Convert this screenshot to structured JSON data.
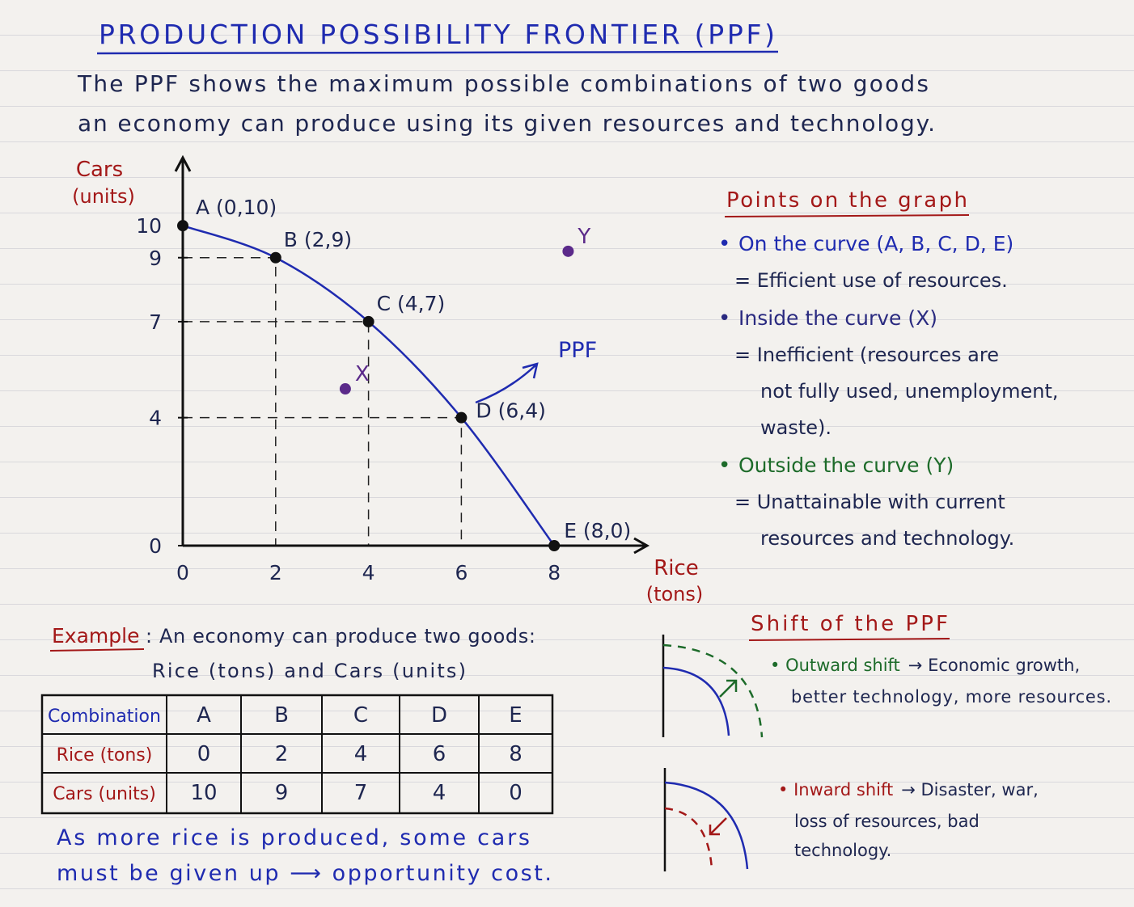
{
  "header": {
    "title": "PRODUCTION POSSIBILITY FRONTIER (PPF)",
    "intro": [
      "The PPF shows the maximum possible combinations of two goods",
      "an economy can produce using its given resources and technology."
    ]
  },
  "chart_data": {
    "type": "line",
    "y_label": "Cars",
    "y_unit": "(units)",
    "x_label": "Rice",
    "x_unit": "(tons)",
    "curve_label": "PPF",
    "x": [
      0,
      2,
      4,
      6,
      8
    ],
    "series": [
      {
        "values": [
          10,
          9,
          7,
          4,
          0
        ],
        "color": "#1f2bb0",
        "point_labels": [
          "A (0,10)",
          "B (2,9)",
          "C (4,7)",
          "D (6,4)",
          "E (8,0)"
        ]
      }
    ],
    "points": {
      "labels": [
        "X",
        "Y"
      ],
      "x": [
        3.5,
        8.3
      ],
      "values": [
        4.9,
        9.2
      ],
      "color": "#5b2a8a"
    },
    "xlim": [
      0,
      10
    ],
    "ylim": [
      0,
      12
    ],
    "xticks": [
      0,
      2,
      4,
      6,
      8
    ],
    "yticks": [
      0,
      4,
      7,
      9,
      10
    ],
    "guides": true
  },
  "notes": {
    "title": "Points on the graph",
    "items": [
      {
        "heading": "On the curve (A, B, C, D, E)",
        "color": "#1f2bb0",
        "lines": [
          "= Efficient use of resources."
        ]
      },
      {
        "heading": "Inside the curve (X)",
        "color": "#2a2a80",
        "lines": [
          "= Inefficient (resources are",
          "not fully used, unemployment,",
          "waste)."
        ]
      },
      {
        "heading": "Outside the curve (Y)",
        "color": "#1d6b2a",
        "lines": [
          "= Unattainable with current",
          "resources and technology."
        ]
      }
    ]
  },
  "example": {
    "label": "Example",
    "text": ": An economy can produce two goods:",
    "text2": "Rice (tons) and Cars (units)",
    "table": {
      "rows": [
        [
          "Combination",
          "A",
          "B",
          "C",
          "D",
          "E"
        ],
        [
          "Rice (tons)",
          0,
          2,
          4,
          6,
          8
        ],
        [
          "Cars (units)",
          10,
          9,
          7,
          4,
          0
        ]
      ]
    },
    "conclusion": [
      "As more rice is produced, some cars",
      "must be given up ⟶ opportunity cost."
    ]
  },
  "shift": {
    "title": "Shift of the PPF",
    "outward": {
      "label": "Outward shift",
      "text": [
        "→ Economic growth,",
        "better technology, more resources."
      ]
    },
    "inward": {
      "label": "Inward shift",
      "text": [
        "→ Disaster, war,",
        "loss of resources, bad",
        "technology."
      ]
    }
  }
}
